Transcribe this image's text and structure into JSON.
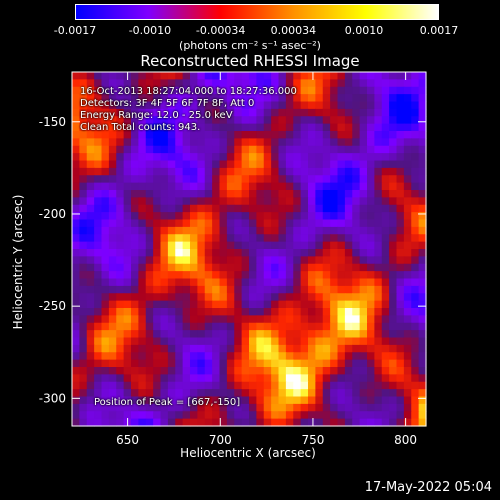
{
  "colorbar": {
    "tick_labels": [
      "-0.0017",
      "-0.0010",
      "-0.00034",
      "0.00034",
      "0.0010",
      "0.0017"
    ],
    "tick_values": [
      -0.0017,
      -0.001,
      -0.00034,
      0.00034,
      0.001,
      0.0017
    ],
    "range": [
      -0.0017,
      0.0017
    ],
    "unit_label": "(photons cm⁻² s⁻¹ asec⁻²)",
    "colors": [
      "#0000ff",
      "#7f00ff",
      "#ff0000",
      "#ff9000",
      "#ffff00",
      "#ffffff"
    ]
  },
  "chart_data": {
    "type": "heatmap",
    "title": "Reconstructed RHESSI Image",
    "xlabel": "Heliocentric X (arcsec)",
    "ylabel": "Heliocentric Y (arcsec)",
    "xlim": [
      620,
      811
    ],
    "ylim": [
      -315,
      -123
    ],
    "xticks": [
      650,
      700,
      750,
      800
    ],
    "yticks": [
      -150,
      -200,
      -250,
      -300
    ],
    "annotations": [
      "16-Oct-2013 18:27:04.000 to 18:27:36.000",
      "Detectors: 3F 4F 5F 6F 7F 8F, Att 0",
      "Energy Range: 12.0 - 25.0 keV",
      "Clean    Total counts: 943."
    ],
    "peak_label": "Position of Peak = [667,-150]",
    "peak": [
      667,
      -150
    ],
    "grid": false
  },
  "footer": {
    "timestamp": "17-May-2022 05:04"
  }
}
